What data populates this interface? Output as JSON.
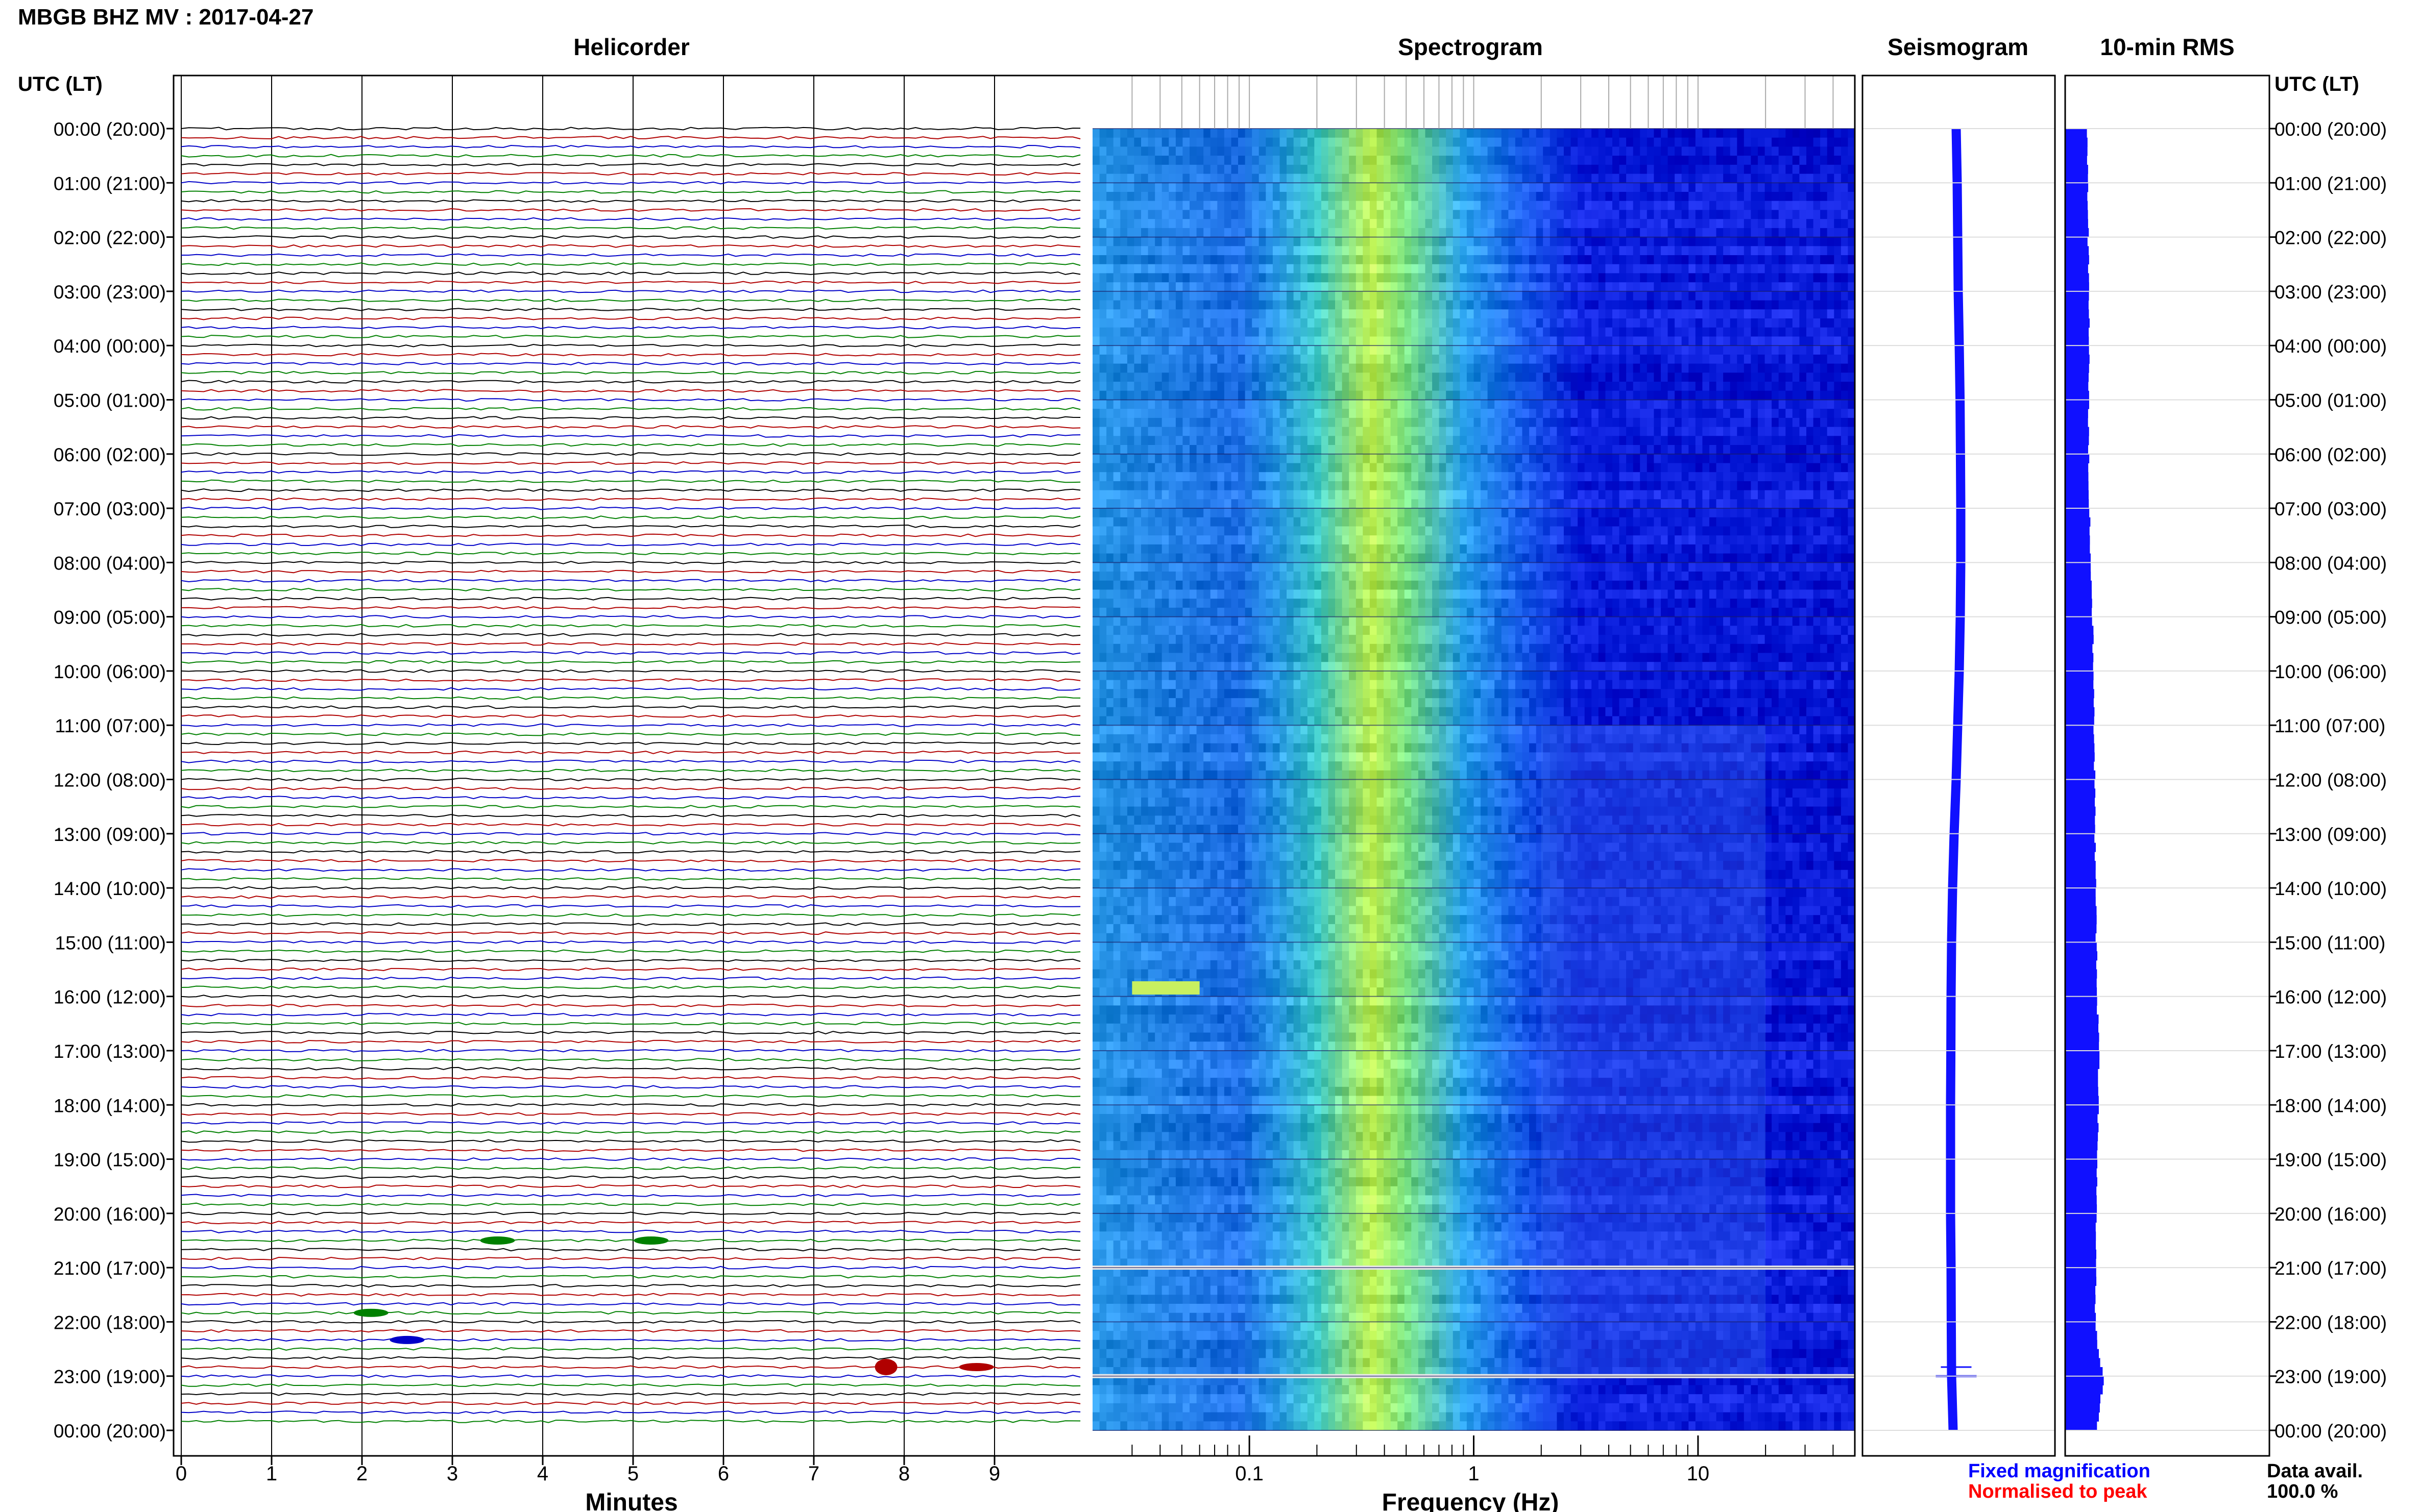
{
  "header": {
    "title": "MBGB BHZ MV : 2017-04-27",
    "utc_label_left": "UTC (LT)",
    "utc_label_right": "UTC (LT)"
  },
  "panels": {
    "helicorder": {
      "title": "Helicorder",
      "xlabel": "Minutes",
      "ticks": [
        "0",
        "1",
        "2",
        "3",
        "4",
        "5",
        "6",
        "7",
        "8",
        "9"
      ]
    },
    "spectrogram": {
      "title": "Spectrogram",
      "xlabel": "Frequency (Hz)",
      "ticks": [
        "0.1",
        "1",
        "10"
      ]
    },
    "seismogram": {
      "title": "Seismogram"
    },
    "rms": {
      "title": "10-min RMS"
    }
  },
  "time_labels": [
    "00:00 (20:00)",
    "01:00 (21:00)",
    "02:00 (22:00)",
    "03:00 (23:00)",
    "04:00 (00:00)",
    "05:00 (01:00)",
    "06:00 (02:00)",
    "07:00 (03:00)",
    "08:00 (04:00)",
    "09:00 (05:00)",
    "10:00 (06:00)",
    "11:00 (07:00)",
    "12:00 (08:00)",
    "13:00 (09:00)",
    "14:00 (10:00)",
    "15:00 (11:00)",
    "16:00 (12:00)",
    "17:00 (13:00)",
    "18:00 (14:00)",
    "19:00 (15:00)",
    "20:00 (16:00)",
    "21:00 (17:00)",
    "22:00 (18:00)",
    "23:00 (19:00)",
    "00:00 (20:00)"
  ],
  "legend": {
    "fixed": "Fixed magnification",
    "normalised": "Normalised to peak",
    "data_avail_label": "Data avail.",
    "data_avail_value": "100.0 %"
  },
  "colors": {
    "trace_cycle": [
      "#000000",
      "#b00000",
      "#0000c8",
      "#008000"
    ],
    "seismogram": "#1010ff",
    "rms": "#1010ff",
    "fixed_text": "#0000ff",
    "normalised_text": "#ff0000"
  },
  "chart_data": [
    {
      "type": "line",
      "title": "Helicorder",
      "xlabel": "Minutes",
      "xlim": [
        0,
        10
      ],
      "rows": 144,
      "minutes_per_row": 10,
      "events": [
        {
          "time_utc": "20:30",
          "minute": 3.5
        },
        {
          "time_utc": "20:30",
          "minute": 5.2
        },
        {
          "time_utc": "21:50",
          "minute": 2.1
        },
        {
          "time_utc": "22:20",
          "minute": 2.5
        },
        {
          "time_utc": "22:50",
          "minute": 7.8
        },
        {
          "time_utc": "22:50",
          "minute": 8.8
        }
      ]
    },
    {
      "type": "heatmap",
      "title": "Spectrogram",
      "xlabel": "Frequency (Hz)",
      "xscale": "log",
      "xlim": [
        0.02,
        50
      ],
      "x_ticks": [
        0.1,
        1,
        10
      ],
      "peak_band_hz": [
        0.25,
        0.5
      ],
      "gaps_utc": [
        "21:00",
        "23:00"
      ],
      "features": [
        {
          "time_utc": "15:50",
          "freq_hz": [
            0.03,
            0.06
          ]
        },
        {
          "time_utc": "11:00-23:00",
          "freq_hz": [
            2,
            20
          ]
        }
      ]
    },
    {
      "type": "line",
      "title": "Seismogram",
      "series": [
        {
          "values": [
            0.0,
            0.1,
            0.15,
            0.2,
            0.3,
            0.38,
            0.42,
            0.45,
            0.45,
            0.4,
            0.3,
            0.15,
            0.0,
            -0.2,
            -0.35,
            -0.45,
            -0.5,
            -0.52,
            -0.55,
            -0.55,
            -0.55,
            -0.5,
            -0.48,
            -0.45,
            -0.3
          ]
        }
      ]
    },
    {
      "type": "bar",
      "title": "10-min RMS",
      "orientation": "horizontal",
      "hourly_values": [
        0.72,
        0.74,
        0.75,
        0.78,
        0.78,
        0.76,
        0.77,
        0.8,
        0.82,
        0.9,
        0.92,
        0.95,
        0.97,
        0.98,
        1.0,
        1.02,
        1.05,
        1.1,
        1.08,
        1.04,
        1.02,
        1.0,
        0.98,
        1.25,
        1.0
      ]
    }
  ]
}
